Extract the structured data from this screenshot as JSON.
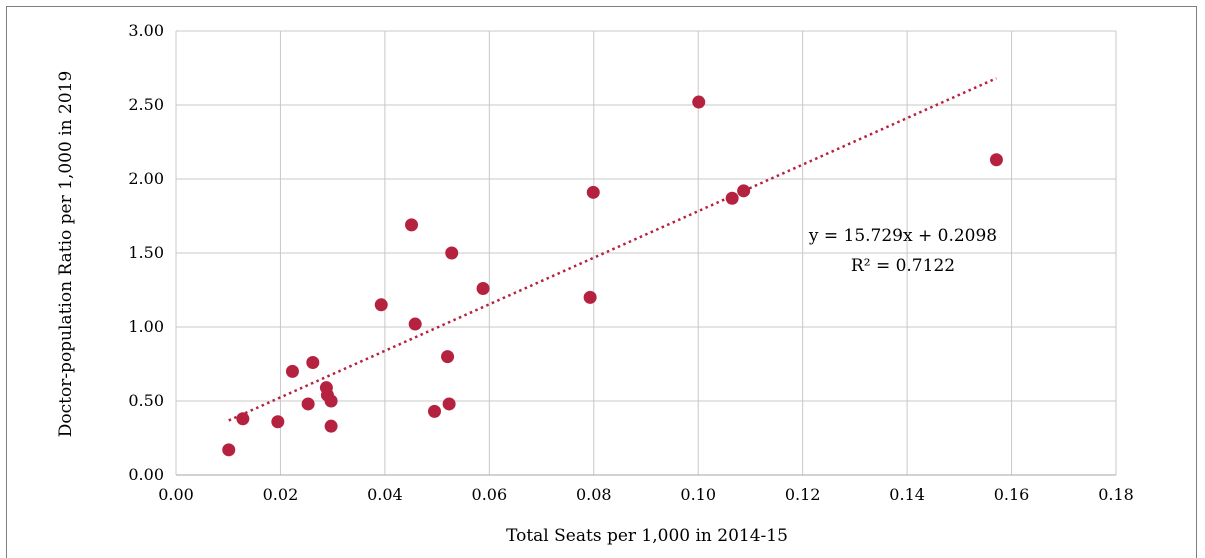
{
  "chart_data": {
    "type": "scatter",
    "title": "",
    "xlabel": "Total Seats per 1,000 in 2014-15",
    "ylabel": "Doctor-population Ratio per 1,000 in 2019",
    "xlim": [
      0,
      0.18
    ],
    "ylim": [
      0,
      3.0
    ],
    "grid": true,
    "x_ticks": [
      "0.00",
      "0.02",
      "0.04",
      "0.06",
      "0.08",
      "0.10",
      "0.12",
      "0.14",
      "0.16",
      "0.18"
    ],
    "y_ticks": [
      "0.00",
      "0.50",
      "1.00",
      "1.50",
      "2.00",
      "2.50",
      "3.00"
    ],
    "marker_color": "#b5223f",
    "trendline_color": "#b5223f",
    "series": [
      {
        "points": [
          {
            "x": 0.0101,
            "y": 0.17
          },
          {
            "x": 0.0128,
            "y": 0.38
          },
          {
            "x": 0.0195,
            "y": 0.36
          },
          {
            "x": 0.0223,
            "y": 0.7
          },
          {
            "x": 0.0253,
            "y": 0.48
          },
          {
            "x": 0.0262,
            "y": 0.76
          },
          {
            "x": 0.0288,
            "y": 0.59
          },
          {
            "x": 0.029,
            "y": 0.54
          },
          {
            "x": 0.0297,
            "y": 0.5
          },
          {
            "x": 0.0297,
            "y": 0.33
          },
          {
            "x": 0.0393,
            "y": 1.15
          },
          {
            "x": 0.0451,
            "y": 1.69
          },
          {
            "x": 0.0458,
            "y": 1.02
          },
          {
            "x": 0.0495,
            "y": 0.43
          },
          {
            "x": 0.052,
            "y": 0.8
          },
          {
            "x": 0.0523,
            "y": 0.48
          },
          {
            "x": 0.0528,
            "y": 1.5
          },
          {
            "x": 0.0588,
            "y": 1.26
          },
          {
            "x": 0.0793,
            "y": 1.2
          },
          {
            "x": 0.0799,
            "y": 1.91
          },
          {
            "x": 0.1001,
            "y": 2.52
          },
          {
            "x": 0.1065,
            "y": 1.87
          },
          {
            "x": 0.1087,
            "y": 1.92
          },
          {
            "x": 0.1571,
            "y": 2.13
          }
        ]
      }
    ],
    "trendline": {
      "slope": 15.729,
      "intercept": 0.2098,
      "x_range": [
        0.0101,
        0.1571
      ],
      "equation_text": "y = 15.729x + 0.2098",
      "r2_text": "R² = 0.7122"
    }
  }
}
